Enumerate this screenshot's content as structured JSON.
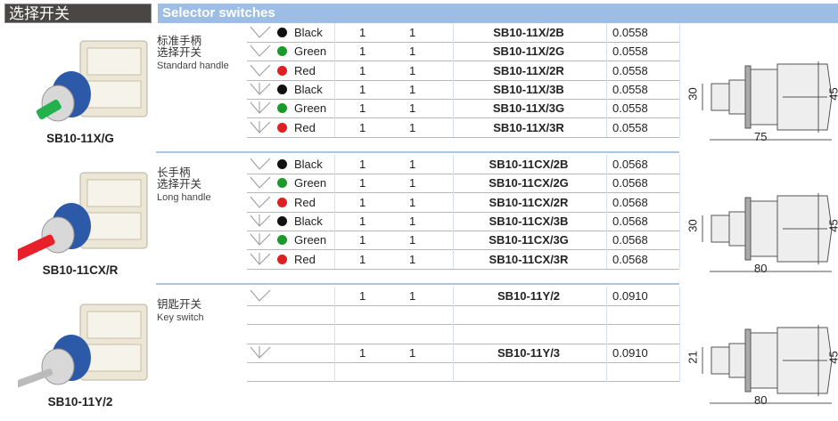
{
  "header": {
    "title_cn": "选择开关",
    "title_en": "Selector switches"
  },
  "colors": {
    "black": "#111111",
    "green": "#1a9a2a",
    "red": "#e02020",
    "header_blue": "#9dbde4"
  },
  "groups": [
    {
      "title_cn_1": "标准手柄",
      "title_cn_2": "选择开关",
      "title_en": "Standard handle",
      "model": "SB10-11X/G",
      "handle_color": "#22b14c",
      "dim_h": "30",
      "dim_h2": "45",
      "dim_w": "75",
      "rows": [
        {
          "icon": "two-position",
          "color": "Black",
          "c1": "1",
          "c2": "1",
          "part": "SB10-11X/2B",
          "weight": "0.0558"
        },
        {
          "icon": "two-position",
          "color": "Green",
          "c1": "1",
          "c2": "1",
          "part": "SB10-11X/2G",
          "weight": "0.0558"
        },
        {
          "icon": "two-position",
          "color": "Red",
          "c1": "1",
          "c2": "1",
          "part": "SB10-11X/2R",
          "weight": "0.0558"
        },
        {
          "icon": "three-position",
          "color": "Black",
          "c1": "1",
          "c2": "1",
          "part": "SB10-11X/3B",
          "weight": "0.0558"
        },
        {
          "icon": "three-position",
          "color": "Green",
          "c1": "1",
          "c2": "1",
          "part": "SB10-11X/3G",
          "weight": "0.0558"
        },
        {
          "icon": "three-position",
          "color": "Red",
          "c1": "1",
          "c2": "1",
          "part": "SB10-11X/3R",
          "weight": "0.0558"
        }
      ]
    },
    {
      "title_cn_1": "长手柄",
      "title_cn_2": "选择开关",
      "title_en": "Long handle",
      "model": "SB10-11CX/R",
      "handle_color": "#e8202a",
      "dim_h": "30",
      "dim_h2": "45",
      "dim_w": "80",
      "rows": [
        {
          "icon": "two-position",
          "color": "Black",
          "c1": "1",
          "c2": "1",
          "part": "SB10-11CX/2B",
          "weight": "0.0568"
        },
        {
          "icon": "two-position",
          "color": "Green",
          "c1": "1",
          "c2": "1",
          "part": "SB10-11CX/2G",
          "weight": "0.0568"
        },
        {
          "icon": "two-position",
          "color": "Red",
          "c1": "1",
          "c2": "1",
          "part": "SB10-11CX/2R",
          "weight": "0.0568"
        },
        {
          "icon": "three-position",
          "color": "Black",
          "c1": "1",
          "c2": "1",
          "part": "SB10-11CX/3B",
          "weight": "0.0568"
        },
        {
          "icon": "three-position",
          "color": "Green",
          "c1": "1",
          "c2": "1",
          "part": "SB10-11CX/3G",
          "weight": "0.0568"
        },
        {
          "icon": "three-position",
          "color": "Red",
          "c1": "1",
          "c2": "1",
          "part": "SB10-11CX/3R",
          "weight": "0.0568"
        }
      ]
    },
    {
      "title_cn_1": "钥匙开关",
      "title_cn_2": "",
      "title_en": "Key switch",
      "model": "SB10-11Y/2",
      "handle_color": "#c0c0c0",
      "dim_h": "21",
      "dim_h2": "45",
      "dim_w": "80",
      "rows": [
        {
          "icon": "two-position",
          "color": "",
          "c1": "1",
          "c2": "1",
          "part": "SB10-11Y/2",
          "weight": "0.0910"
        },
        {
          "icon": "",
          "color": "",
          "c1": "",
          "c2": "",
          "part": "",
          "weight": ""
        },
        {
          "icon": "",
          "color": "",
          "c1": "",
          "c2": "",
          "part": "",
          "weight": ""
        },
        {
          "icon": "three-position",
          "color": "",
          "c1": "1",
          "c2": "1",
          "part": "SB10-11Y/3",
          "weight": "0.0910"
        },
        {
          "icon": "",
          "color": "",
          "c1": "",
          "c2": "",
          "part": "",
          "weight": ""
        }
      ]
    }
  ]
}
